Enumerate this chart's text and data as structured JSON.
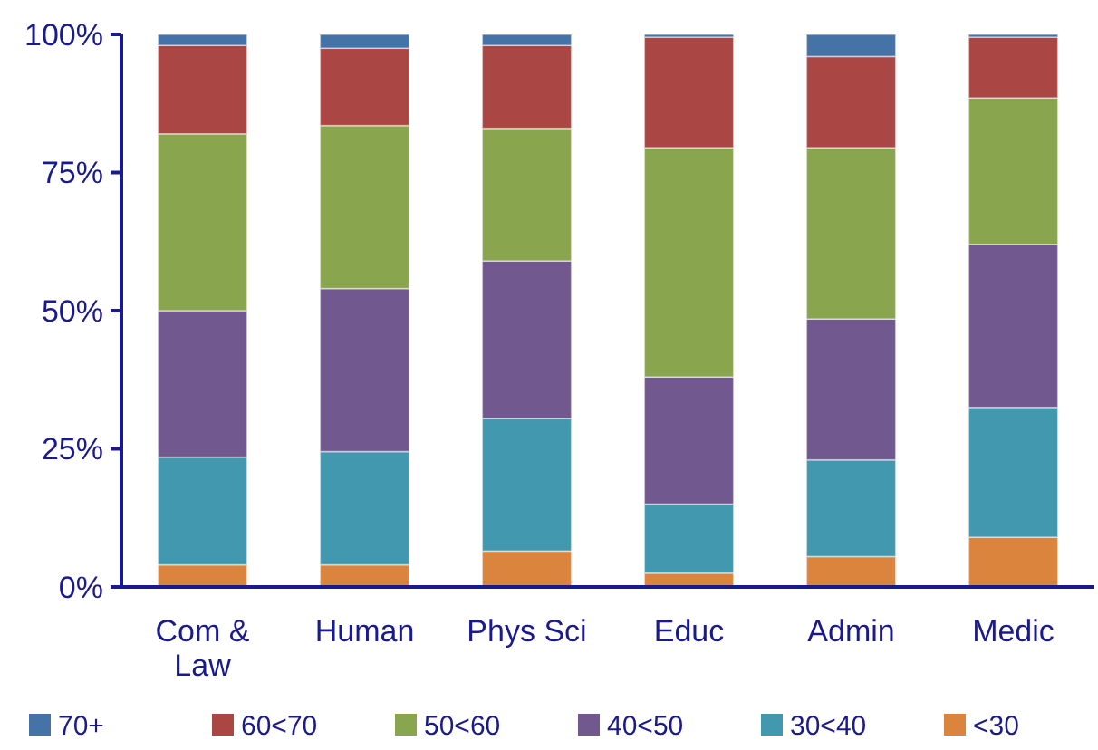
{
  "chart_data": {
    "type": "bar",
    "stacked": true,
    "categories": [
      "Com & Law",
      "Human",
      "Phys Sci",
      "Educ",
      "Admin",
      "Medic"
    ],
    "series": [
      {
        "name": "<30",
        "color": "#db843d",
        "values": [
          4,
          4,
          6.5,
          2.5,
          5.5,
          9
        ]
      },
      {
        "name": "30<40",
        "color": "#4198af",
        "values": [
          19.5,
          20.5,
          24,
          12.5,
          17.5,
          23.5
        ]
      },
      {
        "name": "40<50",
        "color": "#71588f",
        "values": [
          26.5,
          29.5,
          28.5,
          23,
          25.5,
          29.5
        ]
      },
      {
        "name": "50<60",
        "color": "#89a54e",
        "values": [
          32,
          29.5,
          24,
          41.5,
          31,
          26.5
        ]
      },
      {
        "name": "60<70",
        "color": "#aa4643",
        "values": [
          16,
          14,
          15,
          20,
          16.5,
          11
        ]
      },
      {
        "name": "70+",
        "color": "#4572a7",
        "values": [
          2,
          2.5,
          2,
          0.5,
          4,
          0.5
        ]
      }
    ],
    "ylim": [
      0,
      100
    ],
    "yticks": [
      {
        "value": 0,
        "label": "0%"
      },
      {
        "value": 25,
        "label": "25%"
      },
      {
        "value": 50,
        "label": "50%"
      },
      {
        "value": 75,
        "label": "75%"
      },
      {
        "value": 100,
        "label": "100%"
      }
    ],
    "legend": "bottom",
    "grid": false
  }
}
